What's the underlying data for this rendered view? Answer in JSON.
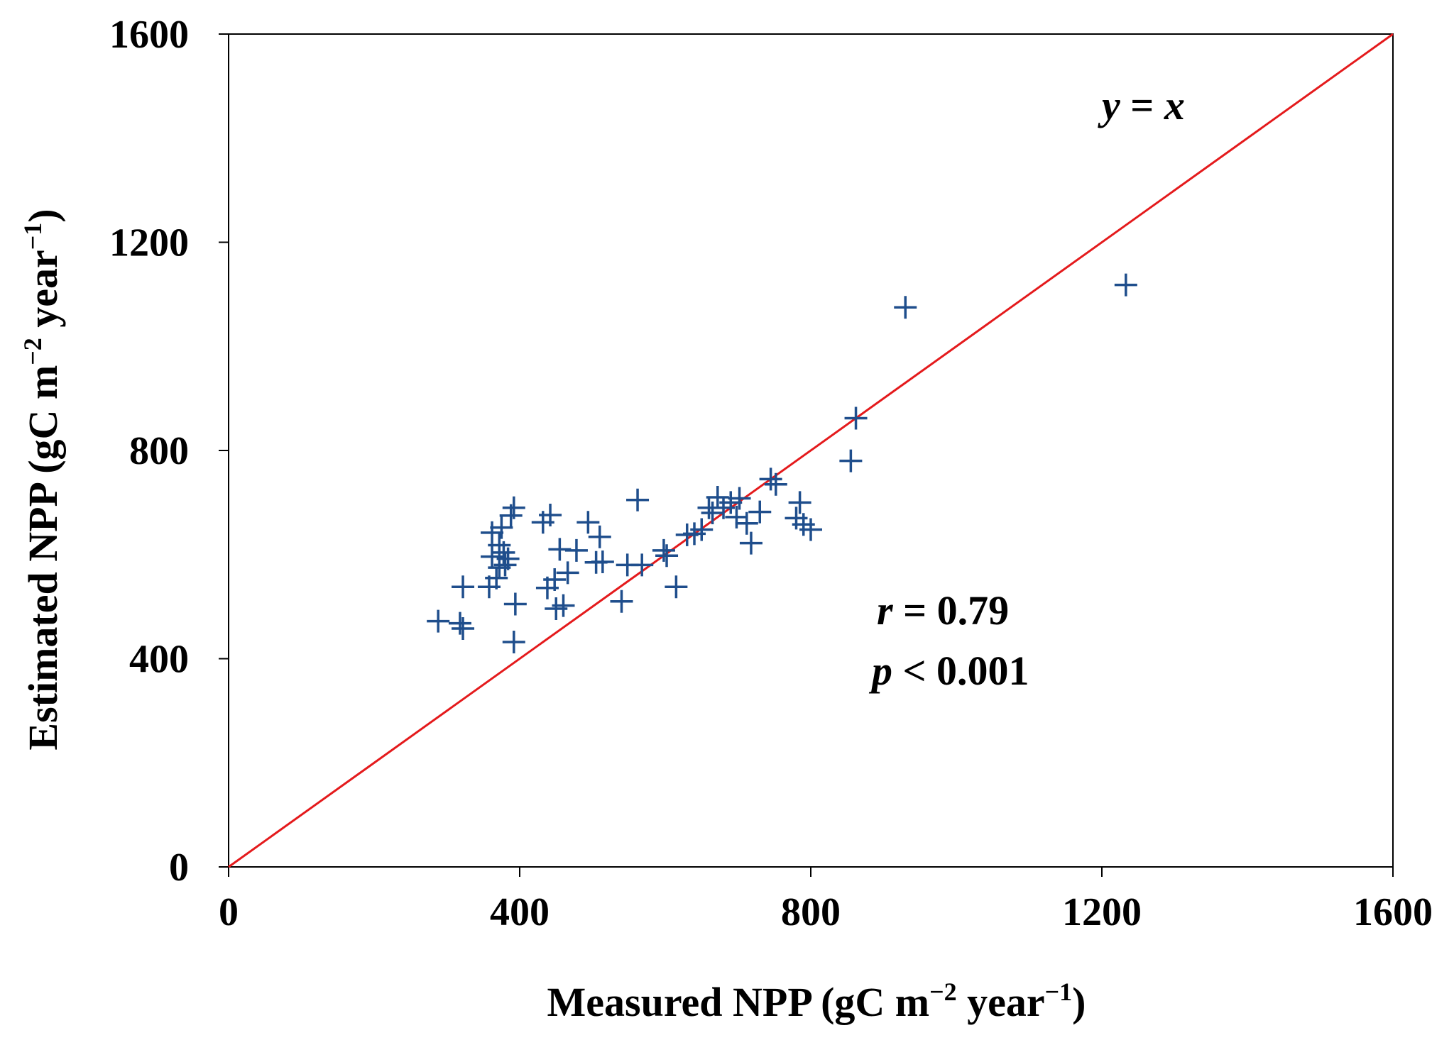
{
  "chart_data": {
    "type": "scatter",
    "x_axis": {
      "label": {
        "main": "Measured NPP (gC m",
        "sup1": "−2",
        "mid": " year",
        "sup2": "−1",
        "end": ")"
      },
      "range": [
        0,
        1600
      ],
      "ticks": [
        0,
        400,
        800,
        1200,
        1600
      ],
      "tick_labels": [
        "0",
        "400",
        "800",
        "1200",
        "1600"
      ]
    },
    "y_axis": {
      "label": {
        "main": "Estimated NPP (gC m",
        "sup1": "−2",
        "mid": " year",
        "sup2": "−1",
        "end": ")"
      },
      "range": [
        0,
        1600
      ],
      "ticks": [
        0,
        400,
        800,
        1200,
        1600
      ],
      "tick_labels": [
        "0",
        "400",
        "800",
        "1200",
        "1600"
      ]
    },
    "reference_line": {
      "label_var1": "y",
      "label_eq": " = ",
      "label_var2": "x",
      "from": [
        0,
        0
      ],
      "to": [
        1600,
        1600
      ],
      "color": "#e41a1c"
    },
    "stats": {
      "r_var": "r",
      "r_text": " = 0.79",
      "p_var": "p",
      "p_text": " < 0.001"
    },
    "marker": {
      "shape": "plus",
      "color": "#1f4e8c"
    },
    "grid": false,
    "points": [
      [
        288,
        472
      ],
      [
        318,
        468
      ],
      [
        322,
        458
      ],
      [
        322,
        538
      ],
      [
        358,
        538
      ],
      [
        362,
        596
      ],
      [
        362,
        642
      ],
      [
        368,
        555
      ],
      [
        372,
        575
      ],
      [
        372,
        618
      ],
      [
        375,
        652
      ],
      [
        378,
        604
      ],
      [
        380,
        580
      ],
      [
        384,
        592
      ],
      [
        388,
        675
      ],
      [
        392,
        690
      ],
      [
        392,
        432
      ],
      [
        394,
        505
      ],
      [
        432,
        662
      ],
      [
        438,
        536
      ],
      [
        442,
        676
      ],
      [
        448,
        552
      ],
      [
        450,
        496
      ],
      [
        455,
        610
      ],
      [
        460,
        502
      ],
      [
        466,
        565
      ],
      [
        478,
        608
      ],
      [
        494,
        662
      ],
      [
        505,
        585
      ],
      [
        510,
        634
      ],
      [
        514,
        586
      ],
      [
        540,
        510
      ],
      [
        548,
        580
      ],
      [
        562,
        705
      ],
      [
        568,
        580
      ],
      [
        598,
        608
      ],
      [
        602,
        598
      ],
      [
        615,
        538
      ],
      [
        630,
        638
      ],
      [
        640,
        640
      ],
      [
        650,
        648
      ],
      [
        660,
        690
      ],
      [
        665,
        680
      ],
      [
        672,
        710
      ],
      [
        680,
        690
      ],
      [
        690,
        700
      ],
      [
        698,
        672
      ],
      [
        702,
        708
      ],
      [
        712,
        660
      ],
      [
        718,
        622
      ],
      [
        730,
        682
      ],
      [
        745,
        745
      ],
      [
        752,
        735
      ],
      [
        780,
        670
      ],
      [
        785,
        700
      ],
      [
        790,
        658
      ],
      [
        800,
        648
      ],
      [
        855,
        780
      ],
      [
        862,
        862
      ],
      [
        930,
        1075
      ],
      [
        1233,
        1118
      ]
    ]
  }
}
